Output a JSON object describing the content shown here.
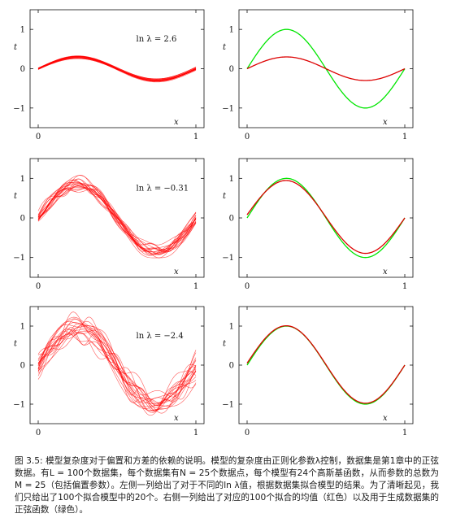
{
  "chart_data": {
    "type": "line",
    "layout": "3 rows x 2 columns",
    "xlabel": "x",
    "ylabel": "t",
    "xlim": [
      0,
      1
    ],
    "ylim": [
      -1.5,
      1.5
    ],
    "xticks": [
      "0",
      "1"
    ],
    "yticks": [
      "1",
      "0",
      "−1"
    ],
    "grid": false,
    "line_colors": {
      "fits": "#ff0000",
      "mean": "#dd0000",
      "true_sine": "#00e600"
    },
    "rows": [
      {
        "annotation": "ln λ = 2.6",
        "ln_lambda": 2.6,
        "left": {
          "description_series": "20 fitted models (red)",
          "amplitude_approx": 0.3,
          "spread_approx": 0.05
        },
        "right": {
          "series": [
            {
              "color": "green",
              "x": [
                0,
                0.25,
                0.5,
                0.75,
                1
              ],
              "values": [
                0,
                1.0,
                0,
                -1.0,
                0
              ]
            },
            {
              "color": "red",
              "x": [
                0,
                0.25,
                0.5,
                0.75,
                1
              ],
              "values": [
                0,
                0.3,
                0,
                -0.3,
                0
              ]
            }
          ]
        }
      },
      {
        "annotation": "ln λ = −0.31",
        "ln_lambda": -0.31,
        "left": {
          "description_series": "20 fitted models (red)",
          "amplitude_approx": 0.85,
          "spread_approx": 0.2
        },
        "right": {
          "series": [
            {
              "color": "green",
              "x": [
                0,
                0.25,
                0.5,
                0.75,
                1
              ],
              "values": [
                0,
                1.0,
                0,
                -1.0,
                0
              ]
            },
            {
              "color": "red",
              "x": [
                0,
                0.25,
                0.5,
                0.75,
                1
              ],
              "values": [
                0.08,
                0.88,
                0,
                -0.92,
                0
              ]
            }
          ]
        }
      },
      {
        "annotation": "ln λ = −2.4",
        "ln_lambda": -2.4,
        "left": {
          "description_series": "20 fitted models (red)",
          "amplitude_approx": 0.95,
          "spread_approx": 0.35
        },
        "right": {
          "series": [
            {
              "color": "green",
              "x": [
                0,
                0.25,
                0.5,
                0.75,
                1
              ],
              "values": [
                0,
                1.0,
                0,
                -1.0,
                0
              ]
            },
            {
              "color": "red",
              "x": [
                0,
                0.25,
                0.5,
                0.75,
                1
              ],
              "values": [
                0.05,
                0.98,
                0,
                -0.98,
                0
              ]
            }
          ]
        }
      }
    ]
  },
  "caption": {
    "text": "图 3.5: 模型复杂度对于偏置和方差的依赖的说明。模型的复杂度由正则化参数λ控制，数据集是第1章中的正弦数据。有L = 100个数据集，每个数据集有N = 25个数据点，每个模型有24个高斯基函数，从而参数的总数为M = 25（包括偏置参数）。左侧一列给出了对于不同的ln λ值，根据数据集拟合模型的结果。为了清晰起见，我们只给出了100个拟合模型中的20个。右侧一列给出了对应的100个拟合的均值（红色）以及用于生成数据集的正弦函数（绿色）。"
  }
}
